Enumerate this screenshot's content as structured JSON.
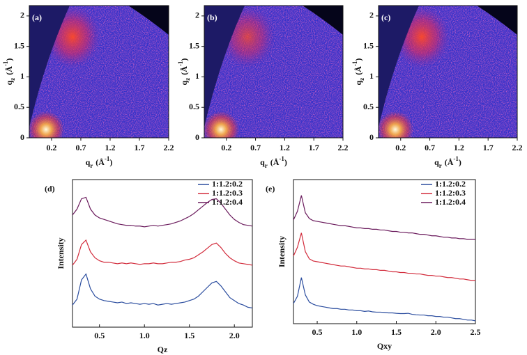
{
  "chart_data": [
    {
      "type": "heatmap",
      "panel_label": "(a)",
      "xlabel": [
        "q",
        "r",
        "(Å",
        "-1",
        ")"
      ],
      "ylabel": [
        "q",
        "z",
        "(Å",
        "-1",
        ")"
      ],
      "xlim": [
        -0.18,
        2.2
      ],
      "ylim": [
        0,
        2.17
      ],
      "xticks": [
        0.2,
        0.7,
        1.2,
        1.7,
        2.2
      ],
      "yticks": [
        0,
        0.5,
        1,
        1.5,
        2
      ]
    },
    {
      "type": "heatmap",
      "panel_label": "(b)",
      "xlabel": [
        "q",
        "r",
        "(Å",
        "-1",
        ")"
      ],
      "ylabel": [
        "q",
        "z",
        "(Å",
        "-1",
        ")"
      ],
      "xlim": [
        -0.18,
        2.2
      ],
      "ylim": [
        0,
        2.17
      ],
      "xticks": [
        0.2,
        0.7,
        1.2,
        1.7,
        2.2
      ],
      "yticks": [
        0,
        0.5,
        1,
        1.5,
        2
      ]
    },
    {
      "type": "heatmap",
      "panel_label": "(c)",
      "xlabel": [
        "q",
        "r",
        "(Å",
        "-1",
        ")"
      ],
      "ylabel": [
        "q",
        "z",
        "(Å",
        "-1",
        ")"
      ],
      "xlim": [
        -0.18,
        2.2
      ],
      "ylim": [
        0,
        2.17
      ],
      "xticks": [
        0.2,
        0.7,
        1.2,
        1.7,
        2.2
      ],
      "yticks": [
        0,
        0.5,
        1,
        1.5,
        2
      ]
    },
    {
      "type": "line",
      "panel_label": "(d)",
      "xlabel": "Qz",
      "ylabel": "Intensity",
      "legend": "upper right",
      "x": [
        0.2,
        0.25,
        0.3,
        0.35,
        0.4,
        0.45,
        0.5,
        0.55,
        0.6,
        0.65,
        0.7,
        0.75,
        0.8,
        0.85,
        0.9,
        0.95,
        1.0,
        1.05,
        1.1,
        1.15,
        1.2,
        1.25,
        1.3,
        1.35,
        1.4,
        1.45,
        1.5,
        1.55,
        1.6,
        1.65,
        1.7,
        1.75,
        1.8,
        1.85,
        1.9,
        1.95,
        2.0,
        2.05,
        2.1,
        2.15,
        2.2
      ],
      "xlim": [
        0.2,
        2.2
      ],
      "ylim": [
        0,
        10
      ],
      "xticks": [
        0.5,
        {
          "value": 1,
          "label": "1.0"
        },
        1.5,
        {
          "value": 2,
          "label": "2.0"
        }
      ],
      "series": [
        {
          "name": "1:1.2:0.2",
          "color": "#2a4c9e",
          "values": [
            1.5,
            1.9,
            3.2,
            3.6,
            2.6,
            2.1,
            1.9,
            1.8,
            1.75,
            1.7,
            1.65,
            1.7,
            1.6,
            1.65,
            1.6,
            1.55,
            1.6,
            1.55,
            1.6,
            1.5,
            1.55,
            1.6,
            1.55,
            1.6,
            1.65,
            1.7,
            1.8,
            1.9,
            2.1,
            2.4,
            2.7,
            3.0,
            3.1,
            2.8,
            2.4,
            2.0,
            1.8,
            1.6,
            1.5,
            1.35,
            1.3
          ]
        },
        {
          "name": "1:1.2:0.3",
          "color": "#d22b3b",
          "values": [
            4.2,
            4.6,
            5.6,
            5.9,
            5.1,
            4.7,
            4.5,
            4.4,
            4.4,
            4.35,
            4.3,
            4.35,
            4.3,
            4.35,
            4.3,
            4.25,
            4.3,
            4.3,
            4.35,
            4.3,
            4.3,
            4.35,
            4.4,
            4.4,
            4.45,
            4.55,
            4.6,
            4.7,
            4.9,
            5.1,
            5.35,
            5.6,
            5.7,
            5.4,
            5.0,
            4.7,
            4.5,
            4.35,
            4.3,
            4.25,
            4.2
          ]
        },
        {
          "name": "1:1.2:0.4",
          "color": "#6a1a5c",
          "values": [
            7.6,
            8.0,
            8.7,
            8.8,
            8.0,
            7.6,
            7.4,
            7.3,
            7.2,
            7.1,
            7.0,
            6.95,
            6.9,
            6.9,
            6.85,
            6.85,
            6.8,
            6.85,
            6.9,
            6.85,
            6.9,
            6.95,
            7.0,
            7.1,
            7.2,
            7.35,
            7.5,
            7.7,
            7.95,
            8.2,
            8.45,
            8.65,
            8.7,
            8.4,
            8.0,
            7.6,
            7.3,
            7.1,
            6.95,
            6.9,
            6.85
          ]
        }
      ]
    },
    {
      "type": "line",
      "panel_label": "(e)",
      "xlabel": "Qxy",
      "ylabel": "Intensity",
      "legend": "upper right",
      "x": [
        0.2,
        0.25,
        0.3,
        0.35,
        0.4,
        0.45,
        0.5,
        0.55,
        0.6,
        0.65,
        0.7,
        0.75,
        0.8,
        0.85,
        0.9,
        0.95,
        1.0,
        1.05,
        1.1,
        1.15,
        1.2,
        1.25,
        1.3,
        1.35,
        1.4,
        1.45,
        1.5,
        1.55,
        1.6,
        1.65,
        1.7,
        1.75,
        1.8,
        1.85,
        1.9,
        1.95,
        2.0,
        2.05,
        2.1,
        2.15,
        2.2,
        2.25,
        2.3,
        2.35,
        2.4,
        2.45,
        2.5
      ],
      "xlim": [
        0.2,
        2.5
      ],
      "ylim": [
        0,
        10
      ],
      "xticks": [
        0.5,
        {
          "value": 1,
          "label": "1.0"
        },
        1.5,
        {
          "value": 2,
          "label": "2.0"
        },
        2.5
      ],
      "series": [
        {
          "name": "1:1.2:0.2",
          "color": "#2a4c9e",
          "values": [
            1.4,
            1.9,
            3.2,
            2.0,
            1.5,
            1.35,
            1.25,
            1.2,
            1.15,
            1.1,
            1.05,
            1.05,
            1.0,
            1.0,
            0.95,
            0.95,
            0.9,
            0.9,
            0.85,
            0.88,
            0.82,
            0.8,
            0.8,
            0.78,
            0.75,
            0.75,
            0.72,
            0.7,
            0.7,
            0.72,
            0.65,
            0.62,
            0.6,
            0.6,
            0.55,
            0.55,
            0.5,
            0.5,
            0.45,
            0.45,
            0.4,
            0.35,
            0.35,
            0.3,
            0.25,
            0.25,
            0.2
          ]
        },
        {
          "name": "1:1.2:0.3",
          "color": "#d22b3b",
          "values": [
            4.7,
            5.3,
            6.3,
            5.0,
            4.5,
            4.35,
            4.3,
            4.25,
            4.2,
            4.15,
            4.1,
            4.05,
            4.0,
            4.0,
            3.95,
            3.9,
            3.85,
            3.85,
            3.8,
            3.8,
            3.75,
            3.75,
            3.7,
            3.7,
            3.65,
            3.6,
            3.6,
            3.55,
            3.55,
            3.5,
            3.5,
            3.45,
            3.45,
            3.4,
            3.35,
            3.35,
            3.3,
            3.3,
            3.25,
            3.2,
            3.2,
            3.15,
            3.1,
            3.1,
            3.05,
            3.0,
            3.0
          ]
        },
        {
          "name": "1:1.2:0.4",
          "color": "#6a1a5c",
          "values": [
            7.2,
            7.8,
            8.9,
            7.7,
            7.3,
            7.15,
            7.1,
            7.05,
            7.0,
            6.95,
            6.9,
            6.85,
            6.8,
            6.8,
            6.75,
            6.7,
            6.65,
            6.65,
            6.6,
            6.6,
            6.55,
            6.55,
            6.5,
            6.5,
            6.45,
            6.4,
            6.4,
            6.35,
            6.35,
            6.3,
            6.3,
            6.25,
            6.2,
            6.2,
            6.15,
            6.1,
            6.1,
            6.05,
            6.0,
            6.0,
            5.95,
            5.95,
            5.9,
            5.9,
            5.85,
            5.85,
            5.85
          ]
        }
      ]
    }
  ]
}
